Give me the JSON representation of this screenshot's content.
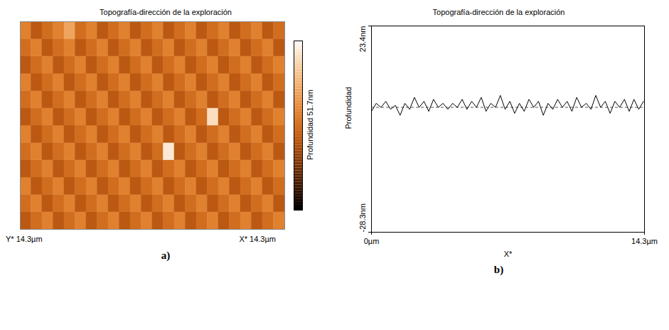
{
  "chart_data": [
    {
      "panel": "a)",
      "type": "heatmap",
      "title": "Topografía-dirección de la exploración",
      "x_label": "X* 14.3µm",
      "y_label": "Y* 14.3µm",
      "xlim": [
        0,
        14.3
      ],
      "ylim": [
        0,
        14.3
      ],
      "tick_labels": false,
      "colorbar_label": "Profundidad 51.7nm",
      "colorbar_range": [
        0,
        51.7
      ],
      "z": [
        [
          21,
          25,
          29,
          21,
          25,
          29,
          21,
          25,
          29,
          21,
          25,
          29,
          21,
          25,
          29,
          21,
          25,
          29,
          21,
          25,
          29,
          21,
          25,
          29
        ],
        [
          25,
          29,
          21,
          25,
          29,
          21,
          25,
          29,
          21,
          25,
          29,
          21,
          25,
          29,
          21,
          25,
          29,
          21,
          25,
          29,
          21,
          25,
          29,
          21
        ],
        [
          29,
          21,
          25,
          29,
          21,
          25,
          29,
          21,
          25,
          29,
          21,
          25,
          29,
          21,
          25,
          29,
          21,
          25,
          29,
          21,
          25,
          29,
          21,
          25
        ],
        [
          21,
          25,
          29,
          21,
          25,
          29,
          21,
          25,
          29,
          21,
          25,
          29,
          21,
          25,
          29,
          21,
          25,
          29,
          21,
          25,
          29,
          21,
          25,
          29
        ],
        [
          25,
          29,
          21,
          25,
          29,
          21,
          25,
          29,
          21,
          25,
          29,
          21,
          25,
          48,
          21,
          25,
          29,
          21,
          25,
          29,
          21,
          25,
          29,
          21
        ],
        [
          29,
          21,
          25,
          29,
          21,
          25,
          29,
          21,
          25,
          29,
          21,
          25,
          29,
          21,
          25,
          29,
          21,
          25,
          29,
          21,
          25,
          29,
          21,
          25
        ],
        [
          21,
          25,
          29,
          21,
          25,
          29,
          21,
          25,
          29,
          21,
          25,
          29,
          21,
          25,
          29,
          21,
          25,
          46,
          21,
          25,
          29,
          21,
          25,
          29
        ],
        [
          25,
          29,
          21,
          25,
          29,
          21,
          25,
          29,
          21,
          25,
          29,
          21,
          25,
          29,
          21,
          25,
          29,
          21,
          25,
          29,
          21,
          25,
          29,
          21
        ],
        [
          29,
          21,
          25,
          29,
          21,
          25,
          29,
          21,
          25,
          29,
          21,
          25,
          29,
          21,
          25,
          29,
          21,
          25,
          29,
          21,
          25,
          29,
          21,
          25
        ],
        [
          21,
          25,
          29,
          21,
          25,
          29,
          21,
          25,
          29,
          21,
          25,
          29,
          21,
          25,
          29,
          21,
          25,
          29,
          21,
          25,
          29,
          21,
          25,
          29
        ],
        [
          25,
          29,
          21,
          25,
          29,
          21,
          25,
          29,
          21,
          25,
          29,
          21,
          25,
          29,
          21,
          25,
          29,
          21,
          25,
          29,
          21,
          25,
          29,
          21
        ],
        [
          29,
          21,
          25,
          29,
          36,
          25,
          29,
          21,
          25,
          29,
          21,
          25,
          29,
          21,
          25,
          29,
          21,
          25,
          29,
          21,
          25,
          29,
          21,
          25
        ]
      ]
    },
    {
      "panel": "b)",
      "type": "line",
      "title": "Topografía-dirección de la exploración",
      "x_label": "X*",
      "y_label": "Profundidad",
      "color": "#000000",
      "grid": false,
      "xlim": [
        0,
        14.3
      ],
      "ylim": [
        -28.3,
        23.4
      ],
      "xticks": [
        {
          "value": 0,
          "label": "0µm"
        },
        {
          "value": 14.3,
          "label": "14.3µm"
        }
      ],
      "yticks": [
        {
          "value": -28.3,
          "label": "-28.3nm"
        },
        {
          "value": 23.4,
          "label": "23.4nm"
        }
      ],
      "reference_line": {
        "value": 3,
        "line_style": "dashed"
      },
      "x": [
        0,
        0.25,
        0.5,
        0.75,
        1,
        1.25,
        1.5,
        1.75,
        2,
        2.25,
        2.5,
        2.75,
        3,
        3.25,
        3.5,
        3.75,
        4,
        4.25,
        4.5,
        4.75,
        5,
        5.25,
        5.5,
        5.75,
        6,
        6.25,
        6.5,
        6.75,
        7,
        7.25,
        7.5,
        7.75,
        8,
        8.25,
        8.5,
        8.75,
        9,
        9.25,
        9.5,
        9.75,
        10,
        10.25,
        10.5,
        10.75,
        11,
        11.25,
        11.5,
        11.75,
        12,
        12.25,
        12.5,
        12.75,
        13,
        13.25,
        13.5,
        13.75,
        14,
        14.25
      ],
      "values": [
        2,
        4,
        3,
        4.5,
        2.5,
        3.5,
        1,
        4,
        2.5,
        5.5,
        3,
        4.5,
        2,
        5,
        3,
        4,
        2.5,
        4,
        3,
        5,
        2.5,
        4.5,
        3,
        5.5,
        2,
        4,
        3,
        6,
        2.5,
        4.5,
        1.5,
        4,
        2,
        5,
        3,
        4.5,
        1,
        4,
        2.5,
        5,
        3,
        4.5,
        2,
        5.5,
        3,
        4,
        2.5,
        6,
        3,
        4.5,
        1.5,
        4.5,
        3,
        5,
        2,
        5,
        2.5,
        4.5
      ]
    }
  ]
}
